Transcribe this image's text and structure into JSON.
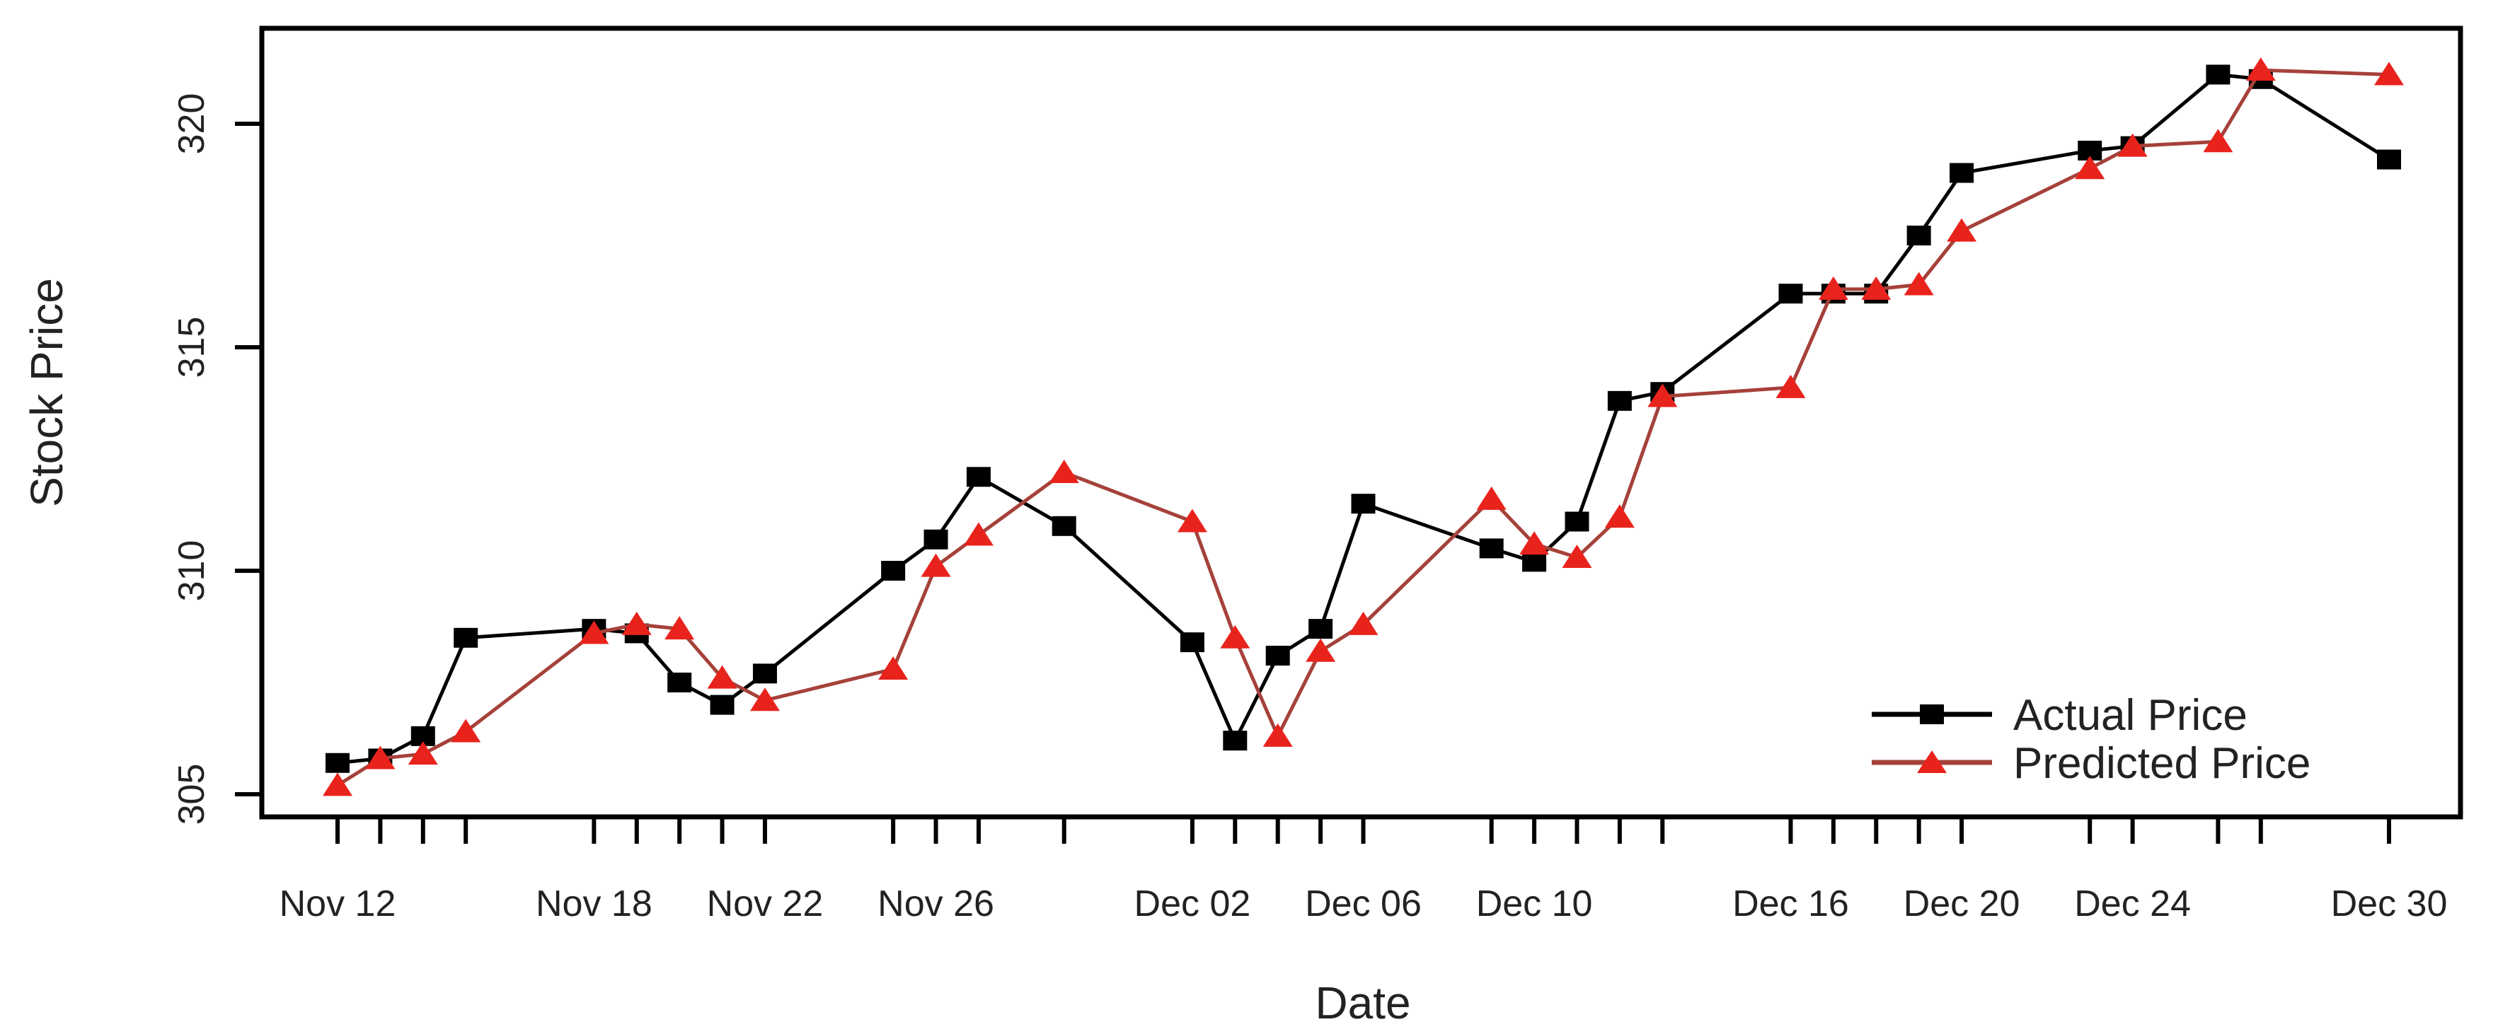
{
  "colors": {
    "background": "#ffffff",
    "actual_line": "#000000",
    "actual_marker": "#000000",
    "predicted_line": "#a5413a",
    "predicted_marker": "#e8231c",
    "text": "#222222",
    "axis": "#000000"
  },
  "chart_data": {
    "type": "line",
    "title": "",
    "xlabel": "Date",
    "ylabel": "Stock Price",
    "grid": false,
    "legend_position": "bottom-right",
    "ylim": [
      304.5,
      322.1
    ],
    "y_ticks": [
      305,
      310,
      315,
      320
    ],
    "x_tick_labels": [
      "Nov 12",
      "Nov 18",
      "Nov 22",
      "Nov 26",
      "Dec 02",
      "Dec 06",
      "Dec 10",
      "Dec 16",
      "Dec 20",
      "Dec 24",
      "Dec 30"
    ],
    "x_tick_label_offsets": [
      0,
      6,
      10,
      14,
      20,
      24,
      28,
      34,
      38,
      42,
      48
    ],
    "x": [
      "Nov 12",
      "Nov 13",
      "Nov 14",
      "Nov 15",
      "Nov 18",
      "Nov 19",
      "Nov 20",
      "Nov 21",
      "Nov 22",
      "Nov 25",
      "Nov 26",
      "Nov 27",
      "Nov 29",
      "Dec 02",
      "Dec 03",
      "Dec 04",
      "Dec 05",
      "Dec 06",
      "Dec 09",
      "Dec 10",
      "Dec 11",
      "Dec 12",
      "Dec 13",
      "Dec 16",
      "Dec 17",
      "Dec 18",
      "Dec 19",
      "Dec 20",
      "Dec 23",
      "Dec 24",
      "Dec 26",
      "Dec 27",
      "Dec 30"
    ],
    "x_day_offsets": [
      0,
      1,
      2,
      3,
      6,
      7,
      8,
      9,
      10,
      13,
      14,
      15,
      17,
      20,
      21,
      22,
      23,
      24,
      27,
      28,
      29,
      30,
      31,
      34,
      35,
      36,
      37,
      38,
      41,
      42,
      44,
      45,
      48
    ],
    "series": [
      {
        "name": "Actual Price",
        "marker": "square",
        "color": "#000000",
        "line_color": "#000000",
        "values": [
          305.7,
          305.8,
          306.3,
          308.5,
          308.7,
          308.6,
          307.5,
          307.0,
          307.7,
          310.0,
          310.7,
          312.1,
          311.0,
          308.4,
          306.2,
          308.1,
          308.7,
          311.5,
          310.5,
          310.2,
          311.1,
          313.8,
          314.0,
          316.2,
          316.2,
          316.2,
          317.5,
          318.9,
          319.4,
          319.5,
          321.1,
          321.0,
          319.2
        ]
      },
      {
        "name": "Predicted Price",
        "marker": "triangle",
        "color": "#e8231c",
        "line_color": "#a5413a",
        "values": [
          305.2,
          305.8,
          305.9,
          306.4,
          308.6,
          308.8,
          308.7,
          307.6,
          307.1,
          307.8,
          310.1,
          310.8,
          312.2,
          311.1,
          308.5,
          306.3,
          308.2,
          308.8,
          311.6,
          310.6,
          310.3,
          311.2,
          313.9,
          314.1,
          316.3,
          316.3,
          316.4,
          317.6,
          319.0,
          319.5,
          319.6,
          321.2,
          321.1
        ]
      }
    ]
  }
}
